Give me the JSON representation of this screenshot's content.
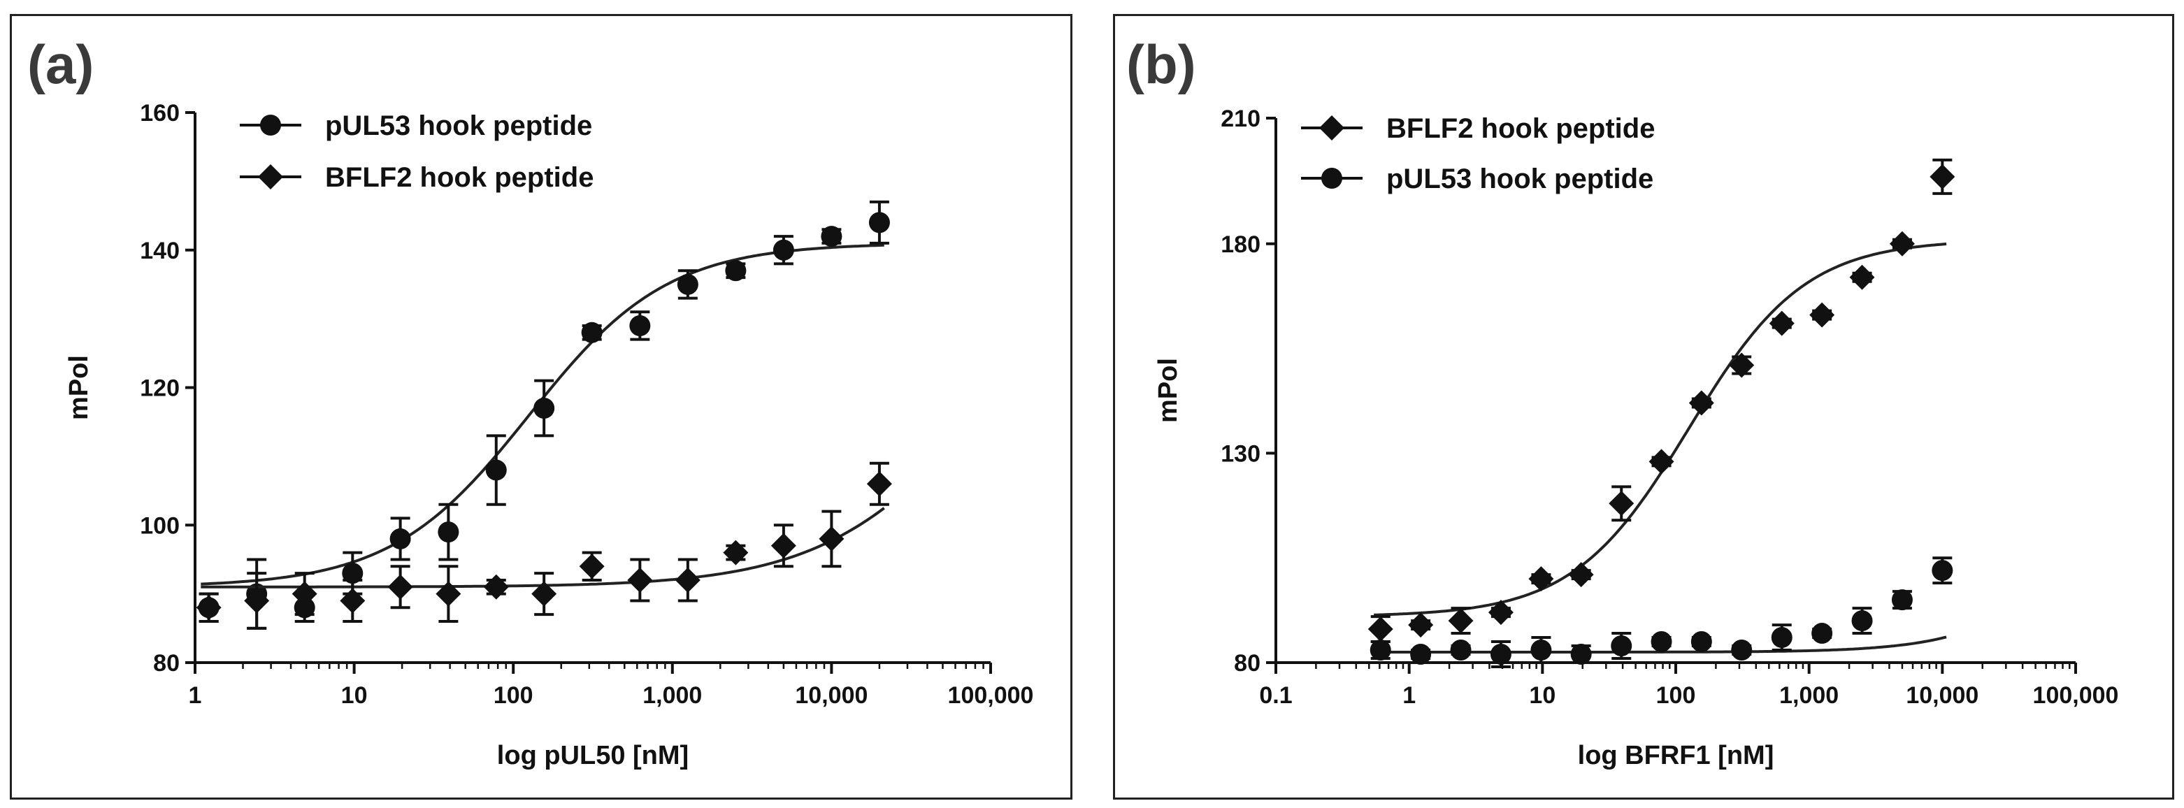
{
  "chart_data": [
    {
      "type": "scatter",
      "panel_label": "(a)",
      "xscale": "log",
      "xlim": [
        1,
        100000
      ],
      "ylim": [
        80,
        160
      ],
      "xlabel": "log pUL50 [nM]",
      "ylabel": "mPol",
      "xticks": [
        1,
        10,
        100,
        1000,
        10000,
        100000
      ],
      "xtick_labels": [
        "1",
        "10",
        "100",
        "1,000",
        "10,000",
        "100,000"
      ],
      "yticks": [
        80,
        100,
        120,
        140,
        160
      ],
      "ytick_labels": [
        "80",
        "100",
        "120",
        "140",
        "160"
      ],
      "legend_position": "top-left",
      "series": [
        {
          "name": "pUL53 hook peptide",
          "marker": "circle",
          "x": [
            1.22,
            2.44,
            4.88,
            9.77,
            19.5,
            39.1,
            78.1,
            156,
            312,
            625,
            1250,
            2500,
            5000,
            10000,
            20000
          ],
          "y": [
            88,
            90,
            88,
            93,
            98,
            99,
            108,
            117,
            128,
            129,
            135,
            137,
            140,
            142,
            144
          ],
          "err": [
            2,
            5,
            2,
            3,
            3,
            4,
            5,
            4,
            1,
            2,
            2,
            1,
            2,
            1,
            3
          ],
          "fit": {
            "bottom": 91,
            "top": 141,
            "log_ec50": 2.1,
            "hill": 1.0
          }
        },
        {
          "name": "BFLF2 hook peptide",
          "marker": "diamond",
          "x": [
            1.22,
            2.44,
            4.88,
            9.77,
            19.5,
            39.1,
            78.1,
            156,
            312,
            625,
            1250,
            2500,
            5000,
            10000,
            20000
          ],
          "y": [
            88,
            89,
            90,
            89,
            91,
            90,
            91,
            90,
            94,
            92,
            92,
            96,
            97,
            98,
            106
          ],
          "err": [
            2,
            4,
            3,
            3,
            3,
            4,
            1,
            3,
            2,
            3,
            3,
            1,
            3,
            4,
            3
          ],
          "fit": {
            "bottom": 91,
            "top": 141,
            "log_ec50": 4.95,
            "hill": 0.85
          }
        }
      ]
    },
    {
      "type": "scatter",
      "panel_label": "(b)",
      "xscale": "log",
      "xlim": [
        0.1,
        100000
      ],
      "ylim": [
        80,
        210
      ],
      "xlabel": "log BFRF1 [nM]",
      "ylabel": "mPol",
      "xticks": [
        0.1,
        1,
        10,
        100,
        1000,
        10000,
        100000
      ],
      "xtick_labels": [
        "0.1",
        "1",
        "10",
        "100",
        "1,000",
        "10,000",
        "100,000"
      ],
      "yticks": [
        80,
        130,
        180,
        210
      ],
      "ytick_labels": [
        "80",
        "130",
        "180",
        "210"
      ],
      "legend_position": "top-left",
      "series": [
        {
          "name": "BFLF2 hook peptide",
          "marker": "diamond",
          "x": [
            0.61,
            1.22,
            2.44,
            4.88,
            9.77,
            19.5,
            39.1,
            78.1,
            156,
            312,
            625,
            1250,
            2500,
            5000,
            10000
          ],
          "y": [
            88,
            89,
            90,
            92,
            100,
            101,
            118,
            128,
            142,
            151,
            161,
            163,
            172,
            180,
            196
          ],
          "err": [
            3,
            1,
            3,
            1,
            1,
            1,
            4,
            1,
            1,
            2,
            1,
            1,
            1,
            1,
            4
          ],
          "fit": {
            "bottom": 91,
            "top": 181,
            "log_ec50": 2.1,
            "hill": 1.0
          }
        },
        {
          "name": "pUL53 hook peptide",
          "marker": "circle",
          "x": [
            0.61,
            1.22,
            2.44,
            4.88,
            9.77,
            19.5,
            39.1,
            78.1,
            156,
            312,
            625,
            1250,
            2500,
            5000,
            10000
          ],
          "y": [
            83,
            82,
            83,
            82,
            83,
            82,
            84,
            85,
            85,
            83,
            86,
            87,
            90,
            95,
            102
          ],
          "err": [
            2,
            1,
            1,
            3,
            3,
            2,
            3,
            1,
            1,
            1,
            3,
            1,
            3,
            2,
            3
          ],
          "fit": {
            "bottom": 82.5,
            "top": 181,
            "log_ec50": 5.45,
            "hill": 1.0
          }
        }
      ]
    }
  ]
}
